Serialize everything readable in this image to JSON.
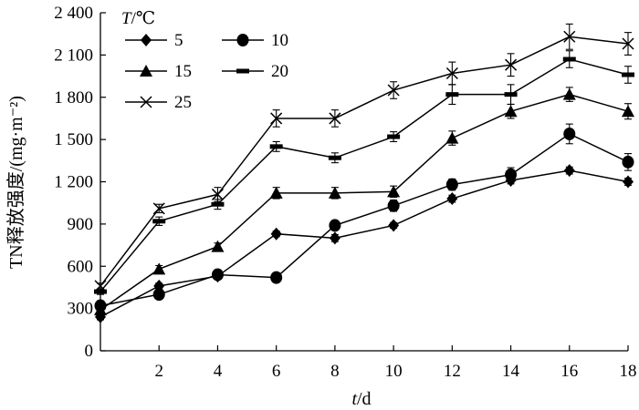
{
  "chart_data": {
    "type": "line",
    "title": "",
    "xlabel": "t/d",
    "ylabel": "TN释放强度/(mg·m⁻²)",
    "xlim": [
      0,
      18
    ],
    "ylim": [
      0,
      2400
    ],
    "x_ticks": [
      2,
      4,
      6,
      8,
      10,
      12,
      14,
      16,
      18
    ],
    "y_ticks": [
      0,
      300,
      600,
      900,
      1200,
      1500,
      1800,
      2100,
      2400
    ],
    "y_tick_labels": [
      "0",
      "300",
      "600",
      "900",
      "1 200",
      "1 500",
      "1 800",
      "2 100",
      "2 400"
    ],
    "legend": {
      "title_var": "T",
      "title_unit": "/℃",
      "placement": "top-left"
    },
    "x": [
      0,
      2,
      4,
      6,
      8,
      10,
      12,
      14,
      16,
      18
    ],
    "series": [
      {
        "name": "5",
        "marker": "diamond",
        "values": [
          240,
          460,
          530,
          830,
          800,
          890,
          1080,
          1210,
          1280,
          1200
        ],
        "errors": [
          20,
          20,
          20,
          20,
          25,
          20,
          25,
          25,
          25,
          25
        ]
      },
      {
        "name": "10",
        "marker": "circle",
        "values": [
          320,
          400,
          540,
          520,
          890,
          1030,
          1180,
          1250,
          1540,
          1340
        ],
        "errors": [
          25,
          25,
          25,
          20,
          30,
          40,
          40,
          50,
          70,
          60
        ]
      },
      {
        "name": "15",
        "marker": "triangle",
        "values": [
          290,
          580,
          740,
          1120,
          1120,
          1130,
          1510,
          1700,
          1820,
          1700
        ],
        "errors": [
          25,
          25,
          25,
          40,
          40,
          40,
          50,
          50,
          50,
          55
        ]
      },
      {
        "name": "20",
        "marker": "bar",
        "values": [
          420,
          920,
          1040,
          1450,
          1370,
          1520,
          1820,
          1820,
          2070,
          1960
        ],
        "errors": [
          20,
          30,
          35,
          35,
          35,
          35,
          70,
          70,
          60,
          60
        ]
      },
      {
        "name": "25",
        "marker": "x",
        "values": [
          460,
          1010,
          1110,
          1650,
          1650,
          1850,
          1970,
          2030,
          2230,
          2180
        ],
        "errors": [
          20,
          30,
          50,
          60,
          60,
          60,
          80,
          80,
          90,
          80
        ]
      }
    ]
  }
}
